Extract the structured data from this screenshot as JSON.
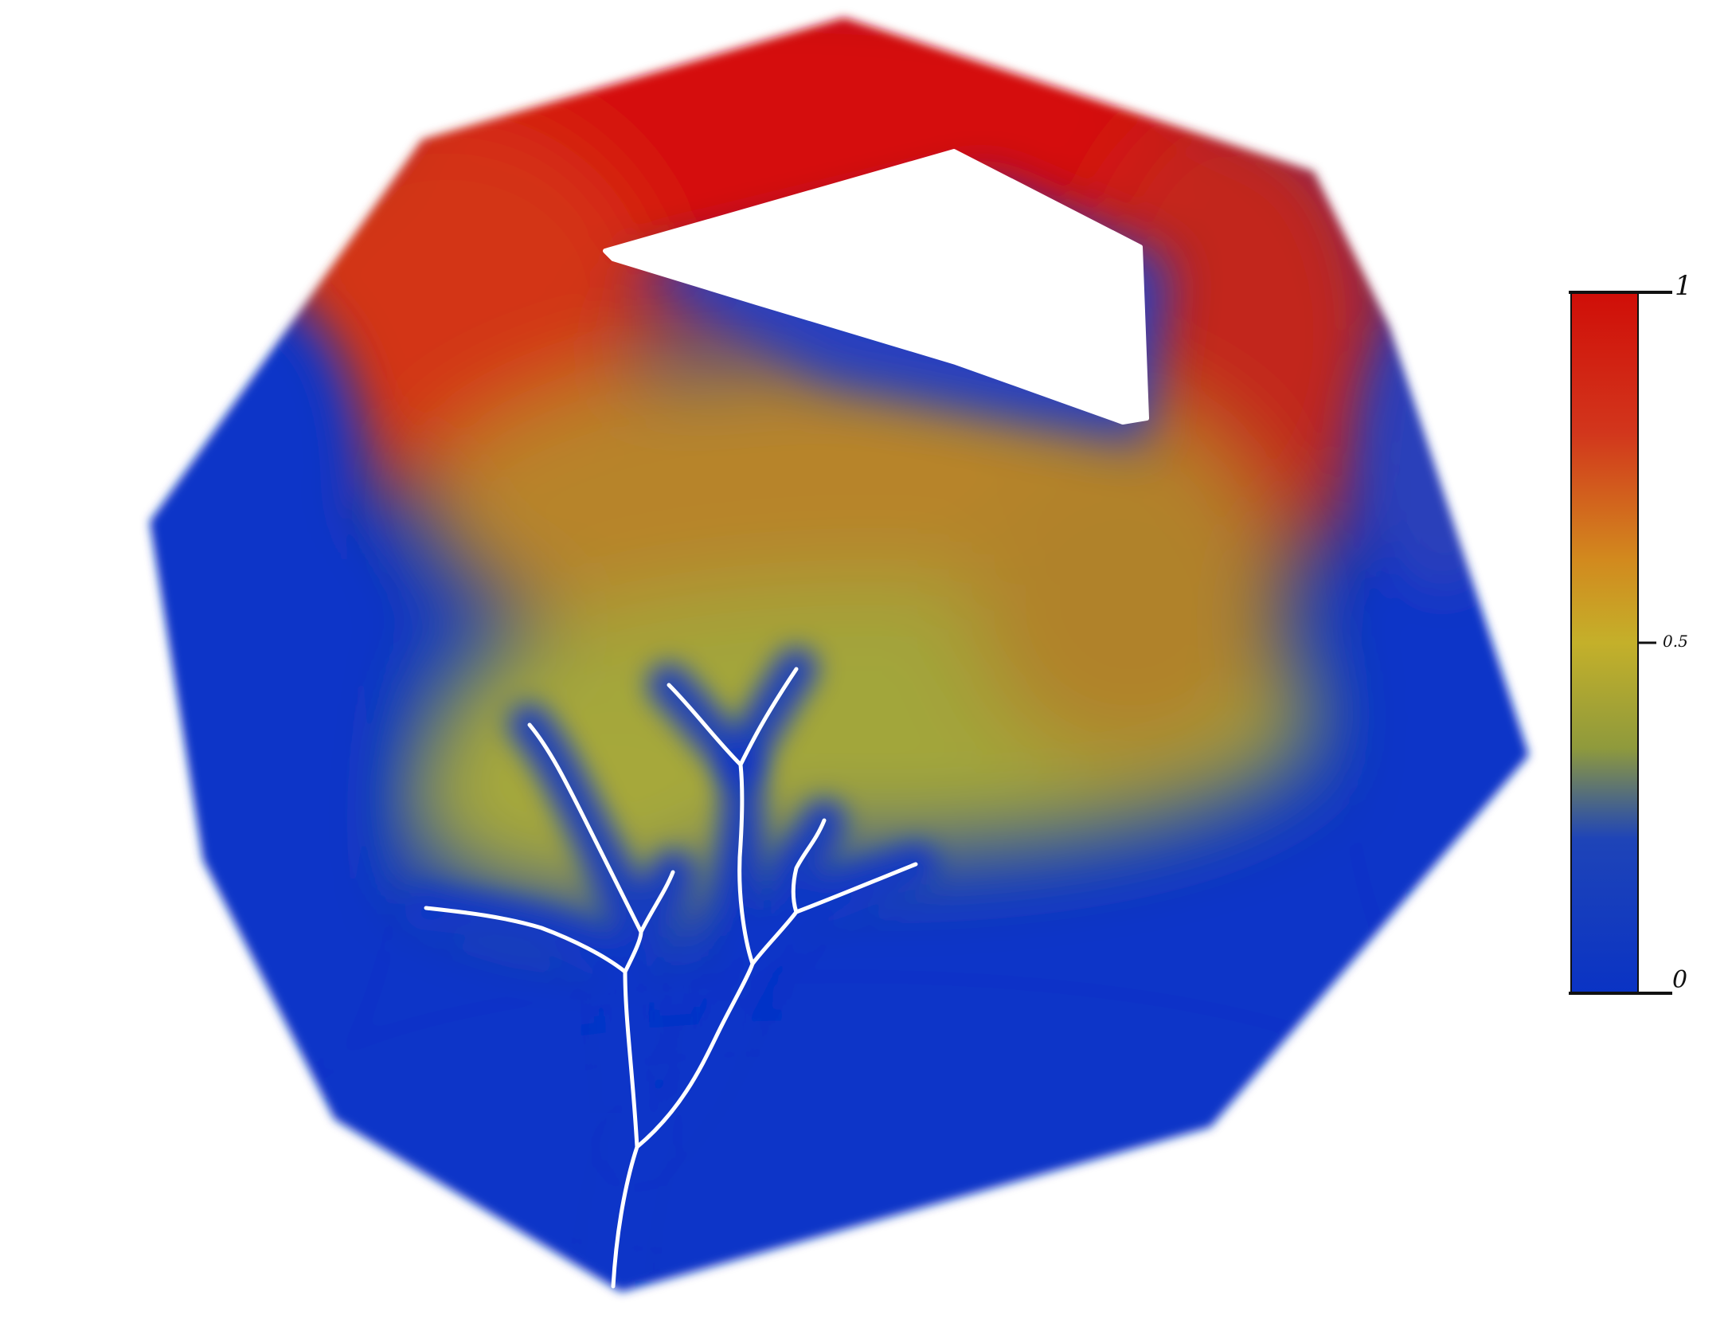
{
  "colorbar": {
    "max_label": "1",
    "mid_label": "0.5",
    "min_label": "0",
    "range": [
      0,
      1
    ],
    "stops": [
      {
        "value": 0.0,
        "color": "#0a33c4"
      },
      {
        "value": 0.22,
        "color": "#1e44b8"
      },
      {
        "value": 0.35,
        "color": "#8f9a3c"
      },
      {
        "value": 0.5,
        "color": "#c4b02a"
      },
      {
        "value": 0.62,
        "color": "#d2891e"
      },
      {
        "value": 0.8,
        "color": "#d2361c"
      },
      {
        "value": 1.0,
        "color": "#d00e08"
      }
    ]
  },
  "colors": {
    "high": "#d50f07",
    "mid_high": "#d0531c",
    "mid": "#a6a83a",
    "low": "#0b34c8",
    "channel": "#ffffff"
  }
}
